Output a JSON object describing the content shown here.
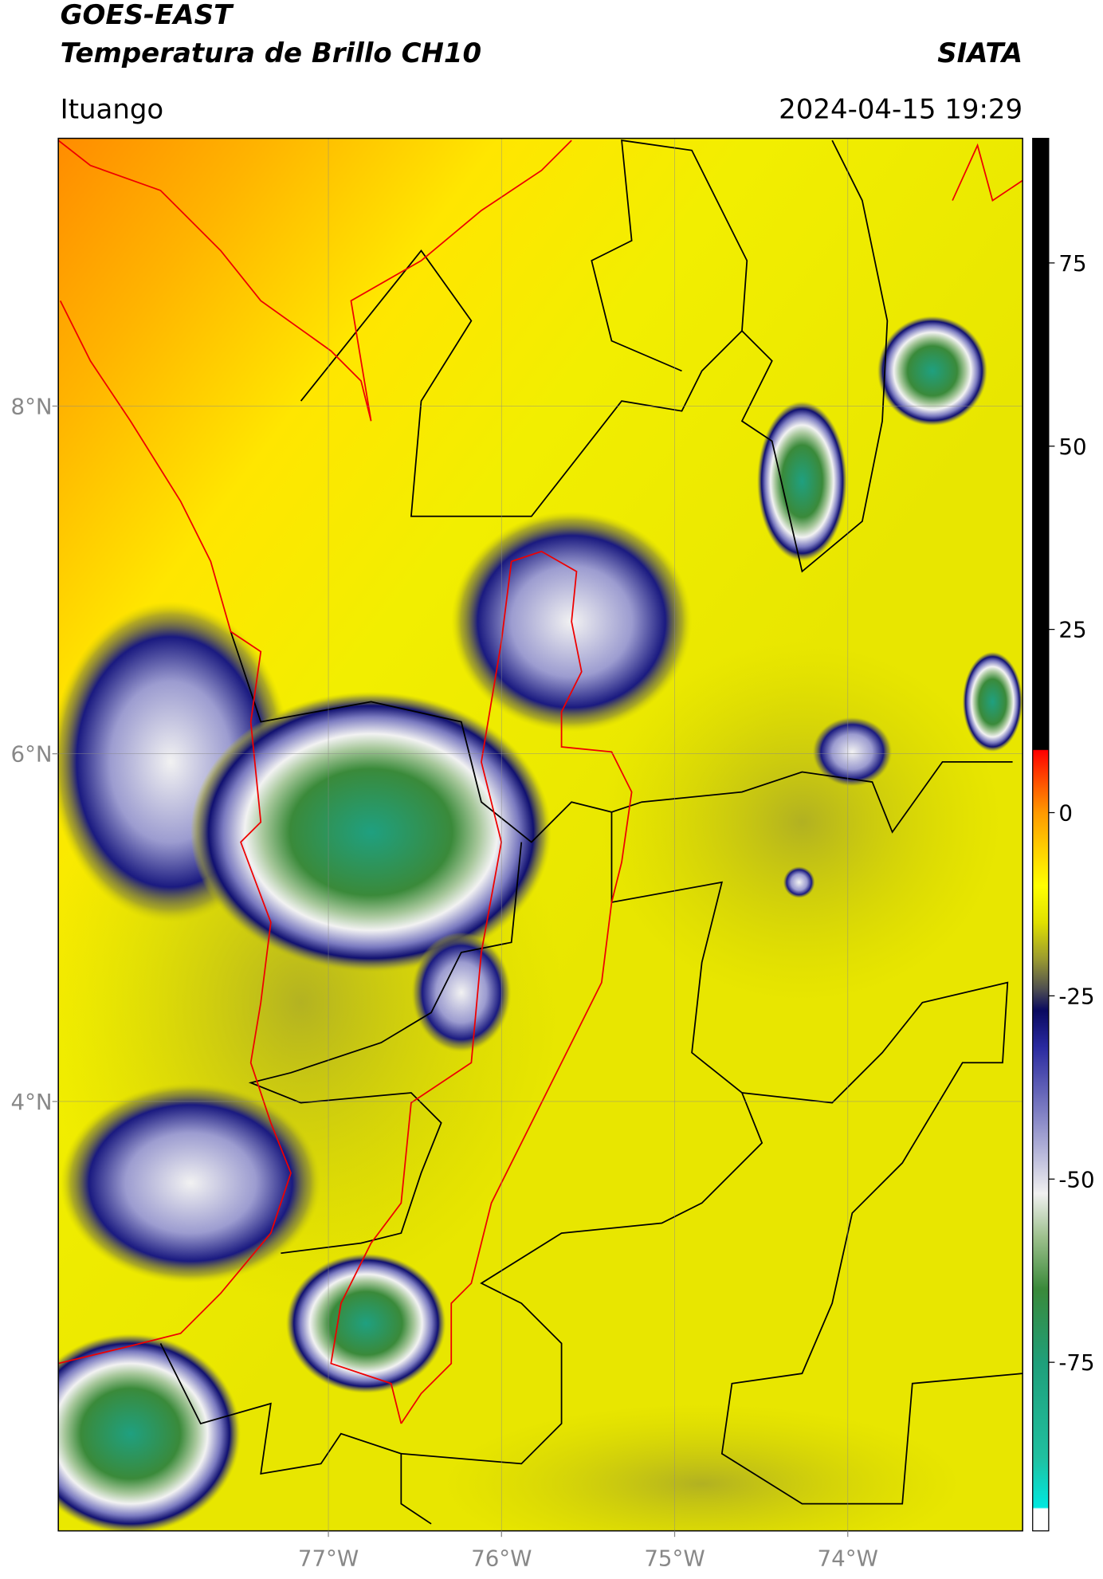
{
  "chart_data": {
    "type": "map",
    "title": "GOES-EAST",
    "subtitle": "Temperatura de Brillo CH10",
    "source": "SIATA",
    "region": "Ituango",
    "datetime": "2024-04-15 19:29",
    "xlim": [
      -78.56,
      -72.99
    ],
    "ylim": [
      1.53,
      9.54
    ],
    "xticks": [
      {
        "value": -77,
        "label": "77°W"
      },
      {
        "value": -76,
        "label": "76°W"
      },
      {
        "value": -75,
        "label": "75°W"
      },
      {
        "value": -74,
        "label": "74°W"
      }
    ],
    "yticks": [
      {
        "value": 8,
        "label": "8°N"
      },
      {
        "value": 6,
        "label": "6°N"
      },
      {
        "value": 4,
        "label": "4°N"
      }
    ],
    "grid": true,
    "colorbar": {
      "lim": [
        -98,
        92
      ],
      "ticks": [
        75,
        50,
        25,
        0,
        -25,
        -50,
        -75
      ],
      "colorscale": [
        {
          "value": -98,
          "color": "#ffffff"
        },
        {
          "value": -95,
          "color": "#ffffff"
        },
        {
          "value": -94.8,
          "color": "#00e8e0"
        },
        {
          "value": -88,
          "color": "#20c0a0"
        },
        {
          "value": -75,
          "color": "#1f9f7a"
        },
        {
          "value": -65,
          "color": "#3a8a3a"
        },
        {
          "value": -58,
          "color": "#9cc08c"
        },
        {
          "value": -52,
          "color": "#f0f0f0"
        },
        {
          "value": -42,
          "color": "#8a8ac8"
        },
        {
          "value": -32,
          "color": "#2a2aa0"
        },
        {
          "value": -27,
          "color": "#0a0a60"
        },
        {
          "value": -24,
          "color": "#505050"
        },
        {
          "value": -20,
          "color": "#9a9a30"
        },
        {
          "value": -15,
          "color": "#e0e000"
        },
        {
          "value": -10,
          "color": "#ffff00"
        },
        {
          "value": -5,
          "color": "#ffd000"
        },
        {
          "value": 0,
          "color": "#ff9900"
        },
        {
          "value": 4,
          "color": "#ff5500"
        },
        {
          "value": 8.5,
          "color": "#ff0000"
        },
        {
          "value": 8.6,
          "color": "#000000"
        },
        {
          "value": 92,
          "color": "#000000"
        }
      ]
    }
  }
}
